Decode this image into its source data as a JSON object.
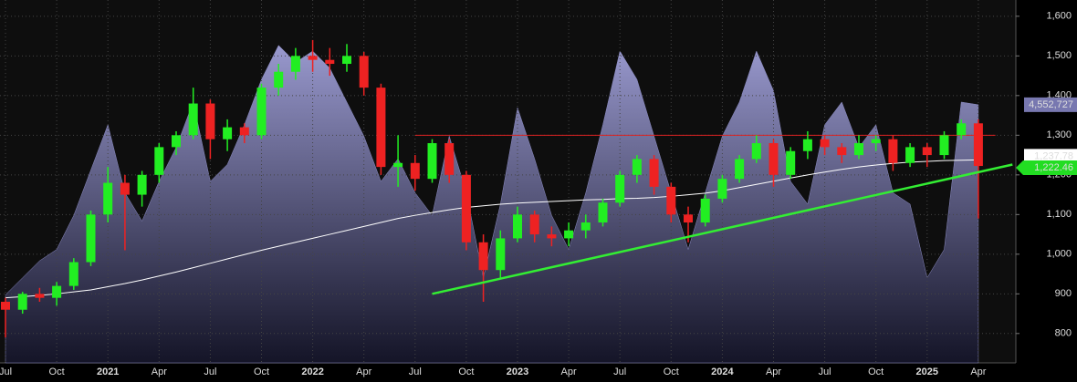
{
  "chart_data": {
    "type": "candlestick",
    "categories": [
      "Jul",
      null,
      null,
      "Oct",
      null,
      null,
      "2021",
      null,
      null,
      "Apr",
      null,
      null,
      "Jul",
      null,
      null,
      "Oct",
      null,
      null,
      "2022",
      null,
      null,
      "Apr",
      null,
      null,
      "Jul",
      null,
      null,
      "Oct",
      null,
      null,
      "2023",
      null,
      null,
      "Apr",
      null,
      null,
      "Jul",
      null,
      null,
      "Oct",
      null,
      null,
      "2024",
      null,
      null,
      "Apr",
      null,
      null,
      "Jul",
      null,
      null,
      "Oct",
      null,
      null,
      "2025",
      null,
      null,
      "Apr"
    ],
    "price": {
      "up_color": "#22ee22",
      "down_color": "#ee2222",
      "label_color": "#22dd22",
      "ohlc": [
        [
          880,
          890,
          790,
          860
        ],
        [
          860,
          905,
          850,
          900
        ],
        [
          900,
          915,
          880,
          890
        ],
        [
          890,
          930,
          870,
          920
        ],
        [
          920,
          990,
          910,
          980
        ],
        [
          980,
          1110,
          970,
          1100
        ],
        [
          1100,
          1220,
          1080,
          1180
        ],
        [
          1180,
          1200,
          1010,
          1150
        ],
        [
          1150,
          1210,
          1120,
          1200
        ],
        [
          1200,
          1280,
          1180,
          1270
        ],
        [
          1270,
          1310,
          1250,
          1300
        ],
        [
          1300,
          1420,
          1290,
          1380
        ],
        [
          1380,
          1390,
          1240,
          1290
        ],
        [
          1290,
          1340,
          1260,
          1320
        ],
        [
          1320,
          1330,
          1280,
          1300
        ],
        [
          1300,
          1430,
          1290,
          1420
        ],
        [
          1420,
          1480,
          1400,
          1460
        ],
        [
          1460,
          1520,
          1440,
          1500
        ],
        [
          1500,
          1540,
          1460,
          1490
        ],
        [
          1490,
          1520,
          1450,
          1480
        ],
        [
          1480,
          1530,
          1460,
          1500
        ],
        [
          1500,
          1510,
          1400,
          1420
        ],
        [
          1420,
          1430,
          1200,
          1220
        ],
        [
          1220,
          1300,
          1170,
          1230
        ],
        [
          1230,
          1250,
          1160,
          1190
        ],
        [
          1190,
          1290,
          1180,
          1280
        ],
        [
          1280,
          1290,
          1180,
          1200
        ],
        [
          1200,
          1210,
          1010,
          1030
        ],
        [
          1030,
          1050,
          880,
          960
        ],
        [
          960,
          1060,
          940,
          1040
        ],
        [
          1040,
          1120,
          1030,
          1100
        ],
        [
          1100,
          1110,
          1030,
          1050
        ],
        [
          1050,
          1070,
          1020,
          1040
        ],
        [
          1040,
          1080,
          1020,
          1060
        ],
        [
          1060,
          1100,
          1040,
          1080
        ],
        [
          1080,
          1140,
          1070,
          1130
        ],
        [
          1130,
          1210,
          1120,
          1200
        ],
        [
          1200,
          1250,
          1180,
          1240
        ],
        [
          1240,
          1250,
          1150,
          1170
        ],
        [
          1170,
          1180,
          1080,
          1100
        ],
        [
          1100,
          1120,
          1030,
          1080
        ],
        [
          1080,
          1150,
          1070,
          1140
        ],
        [
          1140,
          1200,
          1130,
          1190
        ],
        [
          1190,
          1250,
          1180,
          1240
        ],
        [
          1240,
          1300,
          1230,
          1280
        ],
        [
          1280,
          1290,
          1170,
          1200
        ],
        [
          1200,
          1270,
          1190,
          1260
        ],
        [
          1260,
          1310,
          1240,
          1290
        ],
        [
          1290,
          1300,
          1250,
          1270
        ],
        [
          1270,
          1280,
          1230,
          1250
        ],
        [
          1250,
          1300,
          1240,
          1280
        ],
        [
          1280,
          1300,
          1260,
          1290
        ],
        [
          1290,
          1300,
          1210,
          1230
        ],
        [
          1230,
          1280,
          1220,
          1270
        ],
        [
          1270,
          1280,
          1220,
          1250
        ],
        [
          1250,
          1310,
          1240,
          1300
        ],
        [
          1300,
          1340,
          1290,
          1330
        ],
        [
          1330,
          1340,
          1090,
          1222.46
        ]
      ],
      "value_labels": [
        null,
        null,
        null,
        null,
        null,
        null,
        null,
        null,
        null,
        null,
        null,
        null,
        null,
        null,
        null,
        null,
        null,
        null,
        null,
        null,
        null,
        null,
        null,
        null,
        null,
        null,
        null,
        null,
        null,
        null,
        null,
        null,
        null,
        null,
        null,
        null,
        null,
        null,
        null,
        null,
        null,
        null,
        null,
        null,
        null,
        null,
        null,
        null,
        null,
        null,
        null,
        null,
        null,
        null,
        null,
        null,
        null,
        "1,222.46"
      ]
    },
    "moving_average": {
      "color": "#ffffff",
      "values": [
        890,
        893,
        896,
        900,
        905,
        910,
        918,
        926,
        935,
        945,
        955,
        966,
        977,
        988,
        999,
        1010,
        1020,
        1030,
        1040,
        1050,
        1060,
        1070,
        1080,
        1090,
        1098,
        1105,
        1112,
        1118,
        1122,
        1126,
        1129,
        1131,
        1133,
        1135,
        1137,
        1138,
        1140,
        1141,
        1143,
        1146,
        1150,
        1154,
        1160,
        1168,
        1176,
        1184,
        1192,
        1200,
        1207,
        1214,
        1220,
        1225,
        1229,
        1232,
        1234,
        1236,
        1237,
        1237.78
      ],
      "value_labels": [
        null,
        null,
        null,
        null,
        null,
        null,
        null,
        null,
        null,
        null,
        null,
        null,
        null,
        null,
        null,
        null,
        null,
        null,
        null,
        null,
        null,
        null,
        null,
        null,
        null,
        null,
        null,
        null,
        null,
        null,
        null,
        null,
        null,
        null,
        null,
        null,
        null,
        null,
        null,
        null,
        null,
        null,
        null,
        null,
        null,
        null,
        null,
        null,
        null,
        null,
        null,
        null,
        null,
        null,
        null,
        null,
        null,
        "1,237.78"
      ]
    },
    "volume": {
      "axis": "y2",
      "color": "#8c8cc4",
      "label_color": "#7878b0",
      "values": [
        1200000,
        1500000,
        1800000,
        2000000,
        2600000,
        3400000,
        4200000,
        3000000,
        2500000,
        3200000,
        3800000,
        4600000,
        3200000,
        3500000,
        4200000,
        5000000,
        5600000,
        5300000,
        5500000,
        5200000,
        4600000,
        4000000,
        3200000,
        3600000,
        3000000,
        2600000,
        4000000,
        3000000,
        1500000,
        2800000,
        4500000,
        3600000,
        2600000,
        2000000,
        3000000,
        4200000,
        5500000,
        5000000,
        4000000,
        3000000,
        2000000,
        3000000,
        4000000,
        4600000,
        5500000,
        4800000,
        3200000,
        2800000,
        4200000,
        4600000,
        3800000,
        4200000,
        3000000,
        2800000,
        1500000,
        2000000,
        4600000,
        4552727
      ],
      "value_labels": [
        null,
        null,
        null,
        null,
        null,
        null,
        null,
        null,
        null,
        null,
        null,
        null,
        null,
        null,
        null,
        null,
        null,
        null,
        null,
        null,
        null,
        null,
        null,
        null,
        null,
        null,
        null,
        null,
        null,
        null,
        null,
        null,
        null,
        null,
        null,
        null,
        null,
        null,
        null,
        null,
        null,
        null,
        null,
        null,
        null,
        null,
        null,
        null,
        null,
        null,
        null,
        null,
        null,
        null,
        null,
        null,
        null,
        "4,552,727"
      ]
    },
    "resistance": {
      "value": 1300,
      "start": 24,
      "end": 58,
      "color": "#dd2222"
    },
    "trendline": {
      "start": [
        25,
        900
      ],
      "end": [
        59,
        1226
      ],
      "color": "#33ee33"
    },
    "ylim": [
      726,
      1641
    ],
    "yticks": [
      {
        "value": 800,
        "label": "800"
      },
      {
        "value": 900,
        "label": "900"
      },
      {
        "value": 1000,
        "label": "1,000"
      },
      {
        "value": 1100,
        "label": "1,100"
      },
      {
        "value": 1200,
        "label": "1,200"
      },
      {
        "value": 1300,
        "label": "1,300"
      },
      {
        "value": 1400,
        "label": "1,400"
      },
      {
        "value": 1500,
        "label": "1,500"
      },
      {
        "value": 1600,
        "label": "1,600"
      }
    ],
    "y2lim": [
      0,
      6400000
    ],
    "grid": true
  }
}
